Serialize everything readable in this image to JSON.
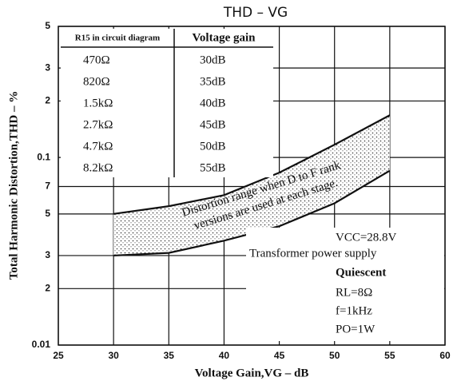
{
  "chart_data": {
    "type": "band",
    "title": "THD – VG",
    "x_label": "Voltage Gain,VG – dB",
    "y_label": "Total Harmonic Distortion,THD – %",
    "x": [
      30,
      35,
      40,
      45,
      50,
      55
    ],
    "high": [
      0.05,
      0.055,
      0.063,
      0.083,
      0.117,
      0.168
    ],
    "low": [
      0.03,
      0.031,
      0.036,
      0.043,
      0.057,
      0.085
    ],
    "xlim": [
      25,
      60
    ],
    "xticks": [
      25,
      30,
      35,
      40,
      45,
      50,
      55,
      60
    ],
    "ylim": [
      0.01,
      0.5
    ],
    "log_y": true,
    "grid": true,
    "yticks": [
      0.01,
      {
        "value": 0.02,
        "label": "2"
      },
      {
        "value": 0.03,
        "label": "3"
      },
      {
        "value": 0.05,
        "label": "5"
      },
      {
        "value": 0.07,
        "label": "7"
      },
      0.1,
      {
        "value": 0.2,
        "label": "2"
      },
      {
        "value": 0.3,
        "label": "3"
      },
      {
        "value": 0.5,
        "label": "5"
      }
    ],
    "band_label": [
      "Distortion range when D to F rank",
      "versions are used at each stage."
    ],
    "annotations": [
      "VCC=28.8V",
      "Transformer power supply",
      "Quiescent",
      "RL=8Ω",
      "f=1kHz",
      "PO=1W"
    ],
    "table": {
      "header": [
        "R15 in circuit diagram",
        "Voltage gain"
      ],
      "rows": [
        [
          "470Ω",
          "30dB"
        ],
        [
          "820Ω",
          "35dB"
        ],
        [
          "1.5kΩ",
          "40dB"
        ],
        [
          "2.7kΩ",
          "45dB"
        ],
        [
          "4.7kΩ",
          "50dB"
        ],
        [
          "8.2kΩ",
          "55dB"
        ]
      ]
    }
  }
}
